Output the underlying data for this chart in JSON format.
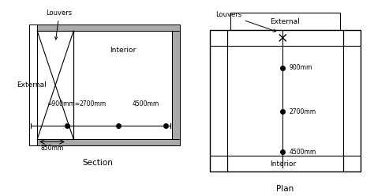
{
  "bg_color": "#ffffff",
  "line_color": "#000000",
  "gray_fill": "#aaaaaa",
  "white": "#ffffff",
  "section": {
    "title": "Section",
    "external_label": "External",
    "interior_label": "Interior",
    "louvers_label": "Louvers",
    "dim_900": "=900mm=",
    "dim_2700": "2700mm",
    "dim_4500": "4500mm",
    "dim_850": "850mm"
  },
  "plan": {
    "title": "Plan",
    "external_label": "External",
    "interior_label": "Interior",
    "louvers_label": "Louvers",
    "dim_900": "900mm",
    "dim_2700": "2700mm",
    "dim_4500": "4500mm"
  }
}
